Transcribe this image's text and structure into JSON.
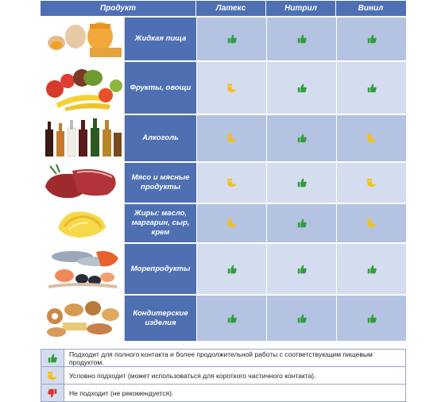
{
  "header": {
    "product": "Продукт",
    "columns": [
      "Латекс",
      "Нитрил",
      "Винил"
    ]
  },
  "rows": [
    {
      "name": "Жидкая пища",
      "image": "eggs-honey-image",
      "ratings": [
        "suitable",
        "suitable",
        "suitable"
      ]
    },
    {
      "name": "Фрукты, овощи",
      "image": "fruits-vegetables-image",
      "ratings": [
        "conditional",
        "suitable",
        "suitable"
      ]
    },
    {
      "name": "Алкоголь",
      "image": "bottles-image",
      "ratings": [
        "conditional",
        "suitable",
        "conditional"
      ]
    },
    {
      "name": "Мясо и мясные продукты",
      "image": "meat-image",
      "ratings": [
        "conditional",
        "suitable",
        "conditional"
      ]
    },
    {
      "name": "Жиры: масло, маргарин, сыр, крем",
      "image": "butter-image",
      "ratings": [
        "conditional",
        "suitable",
        "conditional"
      ]
    },
    {
      "name": "Морепродукты",
      "image": "seafood-image",
      "ratings": [
        "suitable",
        "suitable",
        "suitable"
      ]
    },
    {
      "name": "Кондитерские изделия",
      "image": "pastry-image",
      "ratings": [
        "suitable",
        "suitable",
        "suitable"
      ]
    }
  ],
  "legend": [
    {
      "type": "suitable",
      "text": "Подходит для полного контакта и более продолжительной работы с соответствующим пищевым продуктом."
    },
    {
      "type": "conditional",
      "text": "Условно подходит (может использоваться для короткого частичного контакта)."
    },
    {
      "type": "unsuitable",
      "text": "Не подходит (не рекомендуется)."
    }
  ],
  "colors": {
    "header": "#4f6fb3",
    "suitable": "#2e9e3a",
    "conditional": "#f2c21b",
    "unsuitable": "#d9362b"
  }
}
